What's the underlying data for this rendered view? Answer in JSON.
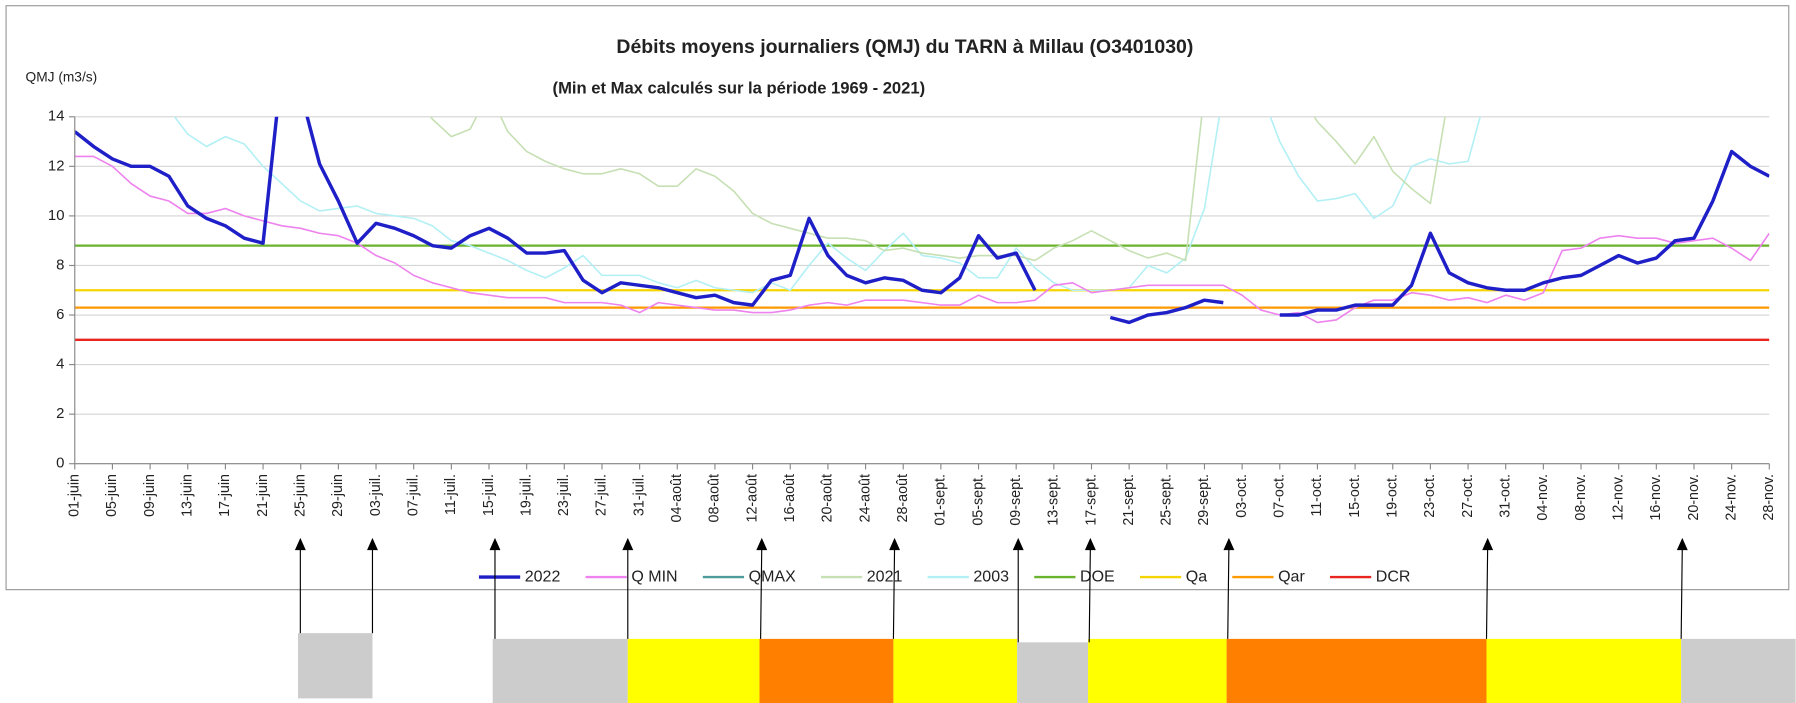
{
  "chart_data": {
    "type": "line",
    "title": "Débits moyens journaliers (QMJ) du TARN à Millau (O3401030)",
    "subtitle": "(Min et Max calculés sur la période 1969 - 2021)",
    "y_label": "QMJ (m3/s)",
    "categories": [
      "01-juin",
      null,
      "05-juin",
      null,
      "09-juin",
      null,
      "13-juin",
      null,
      "17-juin",
      null,
      "21-juin",
      null,
      "25-juin",
      null,
      "29-juin",
      null,
      "03-juil.",
      null,
      "07-juil.",
      null,
      "11-juil.",
      null,
      "15-juil.",
      null,
      "19-juil.",
      null,
      "23-juil.",
      null,
      "27-juil.",
      null,
      "31-juil.",
      null,
      "04-août",
      null,
      "08-août",
      null,
      "12-août",
      null,
      "16-août",
      null,
      "20-août",
      null,
      "24-août",
      null,
      "28-août",
      null,
      "01-sept.",
      null,
      "05-sept.",
      null,
      "09-sept.",
      null,
      "13-sept.",
      null,
      "17-sept.",
      null,
      "21-sept.",
      null,
      "25-sept.",
      null,
      "29-sept.",
      null,
      "03-oct.",
      null,
      "07-oct.",
      null,
      "11-oct.",
      null,
      "15-oct.",
      null,
      "19-oct.",
      null,
      "23-oct.",
      null,
      "27-oct.",
      null,
      "31-oct.",
      null,
      "04-nov.",
      null,
      "08-nov.",
      null,
      "12-nov.",
      null,
      "16-nov.",
      null,
      "20-nov.",
      null,
      "24-nov.",
      null,
      "28-nov."
    ],
    "series": [
      {
        "name": "2022",
        "color": "#1f1fc8",
        "width": 3,
        "values": [
          13.4,
          12.8,
          12.3,
          12.0,
          12.0,
          11.6,
          10.4,
          9.9,
          9.6,
          9.1,
          8.9,
          16,
          15,
          12.1,
          10.6,
          8.9,
          9.7,
          9.5,
          9.2,
          8.8,
          8.7,
          9.2,
          9.5,
          9.1,
          8.5,
          8.5,
          8.6,
          7.4,
          6.9,
          7.3,
          7.2,
          7.1,
          6.9,
          6.7,
          6.8,
          6.5,
          6.4,
          7.4,
          7.6,
          9.9,
          8.4,
          7.6,
          7.3,
          7.5,
          7.4,
          7.0,
          6.9,
          7.5,
          9.2,
          8.3,
          8.5,
          7.0,
          null,
          null,
          null,
          5.9,
          5.7,
          6.0,
          6.1,
          6.3,
          6.6,
          6.5,
          null,
          null,
          6.0,
          6.0,
          6.2,
          6.2,
          6.4,
          6.4,
          6.4,
          7.2,
          9.3,
          7.7,
          7.3,
          7.1,
          7.0,
          7.0,
          7.3,
          7.5,
          7.6,
          8.0,
          8.4,
          8.1,
          8.3,
          9.0,
          9.1,
          10.6,
          12.6,
          12.0,
          11.6
        ]
      },
      {
        "name": "Q MIN",
        "color": "#ee82ee",
        "width": 1.4,
        "values": [
          12.4,
          12.4,
          12.0,
          11.3,
          10.8,
          10.6,
          10.1,
          10.1,
          10.3,
          10.0,
          9.8,
          9.6,
          9.5,
          9.3,
          9.2,
          8.9,
          8.4,
          8.1,
          7.6,
          7.3,
          7.1,
          6.9,
          6.8,
          6.7,
          6.7,
          6.7,
          6.5,
          6.5,
          6.5,
          6.4,
          6.1,
          6.5,
          6.4,
          6.3,
          6.2,
          6.2,
          6.1,
          6.1,
          6.2,
          6.4,
          6.5,
          6.4,
          6.6,
          6.6,
          6.6,
          6.5,
          6.4,
          6.4,
          6.8,
          6.5,
          6.5,
          6.6,
          7.2,
          7.3,
          6.9,
          7.0,
          7.1,
          7.2,
          7.2,
          7.2,
          7.2,
          7.2,
          6.8,
          6.2,
          6.0,
          6.1,
          5.7,
          5.8,
          6.3,
          6.6,
          6.6,
          6.9,
          6.8,
          6.6,
          6.7,
          6.5,
          6.8,
          6.6,
          6.9,
          8.6,
          8.7,
          9.1,
          9.2,
          9.1,
          9.1,
          8.9,
          9.0,
          9.1,
          8.7,
          8.2,
          9.3
        ]
      },
      {
        "name": "QMAX",
        "color": "#4f9b9b",
        "width": 1.4,
        "values": [
          null,
          null,
          null,
          null,
          null,
          null,
          null,
          null,
          null,
          null,
          null,
          null,
          null,
          null,
          null,
          null,
          null,
          null,
          null,
          null,
          null,
          null,
          null,
          null,
          null,
          null,
          null,
          null,
          null,
          null,
          null,
          null,
          null,
          null,
          null,
          null,
          null,
          null,
          null,
          null,
          null,
          null,
          null,
          null,
          null,
          null,
          null,
          null,
          null,
          null,
          null,
          null,
          null,
          null,
          null,
          null,
          null,
          null,
          null,
          null,
          null,
          null,
          null,
          null,
          null,
          null,
          null,
          null,
          null,
          null,
          null,
          null,
          null,
          null,
          null,
          null,
          null,
          null,
          null,
          null,
          null,
          null,
          null,
          null,
          null,
          null,
          null,
          null,
          null,
          null,
          null
        ]
      },
      {
        "name": "2021",
        "color": "#c6e0b4",
        "width": 1.4,
        "values": [
          15,
          15,
          15,
          15,
          15,
          15,
          15,
          15,
          15,
          15,
          15,
          15,
          15,
          15,
          15,
          15,
          15,
          15,
          15,
          13.9,
          13.2,
          13.5,
          15,
          13.4,
          12.6,
          12.2,
          11.9,
          11.7,
          11.7,
          11.9,
          11.7,
          11.2,
          11.2,
          11.9,
          11.6,
          11.0,
          10.1,
          9.7,
          9.5,
          9.3,
          9.1,
          9.1,
          9.0,
          8.6,
          8.7,
          8.5,
          8.4,
          8.3,
          8.4,
          8.4,
          8.4,
          8.2,
          8.7,
          9.0,
          9.4,
          9.0,
          8.6,
          8.3,
          8.5,
          8.2,
          15,
          15,
          15,
          15,
          15,
          15,
          13.8,
          13.0,
          12.1,
          13.2,
          11.8,
          11.1,
          10.5,
          15,
          15,
          15,
          15,
          15,
          15,
          15,
          15,
          15,
          15,
          15,
          15,
          15,
          15,
          15,
          15,
          15,
          15
        ]
      },
      {
        "name": "2003",
        "color": "#b3f0f5",
        "width": 1.4,
        "values": [
          15,
          15,
          15,
          15,
          15,
          14.3,
          13.3,
          12.8,
          13.2,
          12.9,
          12.0,
          11.3,
          10.6,
          10.2,
          10.3,
          10.4,
          10.1,
          10.0,
          9.9,
          9.6,
          9.0,
          8.8,
          8.5,
          8.2,
          7.8,
          7.5,
          7.9,
          8.4,
          7.6,
          7.6,
          7.6,
          7.3,
          7.1,
          7.4,
          7.1,
          7.0,
          6.9,
          7.3,
          7.0,
          8.0,
          8.9,
          8.3,
          7.8,
          8.6,
          9.3,
          8.4,
          8.3,
          8.1,
          7.5,
          7.5,
          8.7,
          7.9,
          7.3,
          7.0,
          7.0,
          7.0,
          7.1,
          8.0,
          7.7,
          8.3,
          10.3,
          15,
          15,
          15,
          13.0,
          11.6,
          10.6,
          10.7,
          10.9,
          9.9,
          10.4,
          12.0,
          12.3,
          12.1,
          12.2,
          15,
          15,
          15,
          15,
          15,
          15,
          15,
          15,
          15,
          15,
          15,
          15,
          15,
          15,
          15,
          15
        ]
      }
    ],
    "hlines": [
      {
        "name": "DOE",
        "color": "#6ab42d",
        "value": 8.8
      },
      {
        "name": "Qa",
        "color": "#f5d400",
        "value": 7.0
      },
      {
        "name": "Qar",
        "color": "#ff9900",
        "value": 6.3
      },
      {
        "name": "DCR",
        "color": "#e8251f",
        "value": 5.0
      }
    ],
    "ylim": [
      0,
      14
    ],
    "yticks": [
      0,
      2,
      4,
      6,
      8,
      10,
      12,
      14
    ],
    "grid": true
  }
}
